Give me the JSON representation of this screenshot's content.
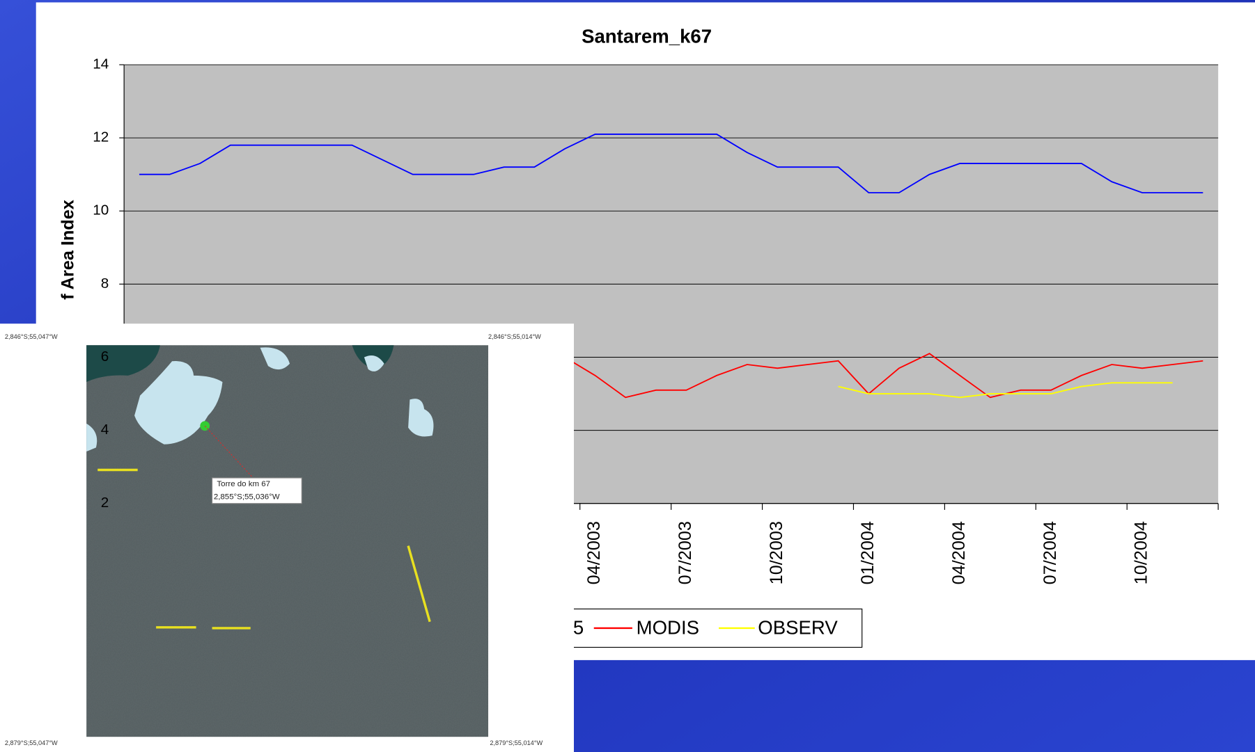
{
  "chart_data": {
    "type": "line",
    "title": "Santarem_k67",
    "y_label": "f Area Index",
    "categories": [
      null,
      null,
      null,
      null,
      null,
      null,
      null,
      null,
      null,
      null,
      null,
      null,
      null,
      null,
      null,
      "04/2003",
      null,
      null,
      "07/2003",
      null,
      null,
      "10/2003",
      null,
      null,
      "01/2004",
      null,
      null,
      "04/2004",
      null,
      null,
      "07/2004",
      null,
      null,
      "10/2004",
      null,
      null
    ],
    "ylim": [
      2,
      14
    ],
    "yticks": [
      2,
      4,
      6,
      8,
      10,
      12,
      14
    ],
    "grid": true,
    "series": [
      {
        "name": "5",
        "color": "#0000ff",
        "values": [
          11,
          11,
          11.3,
          11.8,
          11.8,
          11.8,
          11.8,
          11.8,
          11.4,
          11,
          11,
          11,
          11.2,
          11.2,
          11.7,
          12.1,
          12.1,
          12.1,
          12.1,
          12.1,
          11.6,
          11.2,
          11.2,
          11.2,
          10.5,
          10.5,
          11,
          11.3,
          11.3,
          11.3,
          11.3,
          11.3,
          10.8,
          10.5,
          10.5,
          10.5
        ]
      },
      {
        "name": "MODIS",
        "color": "#ff0000",
        "values": [
          5,
          5.7,
          6.1,
          5.5,
          4.9,
          5.1,
          5.1,
          5.5,
          5.8,
          5.7,
          5.8,
          5.9,
          5,
          5.7,
          6,
          5.5,
          4.9,
          5.1,
          5.1,
          5.5,
          5.8,
          5.7,
          5.8,
          5.9,
          5,
          5.7,
          6.1,
          5.5,
          4.9,
          5.1,
          5.1,
          5.5,
          5.8,
          5.7,
          5.8,
          5.9
        ]
      },
      {
        "name": "OBSERV",
        "color": "#ffff00",
        "values": [
          null,
          null,
          null,
          null,
          null,
          null,
          null,
          null,
          null,
          null,
          null,
          null,
          null,
          null,
          null,
          null,
          null,
          null,
          null,
          null,
          null,
          null,
          null,
          5.2,
          5,
          5,
          5,
          4.9,
          5,
          5,
          5,
          5.2,
          5.3,
          5.3,
          5.3,
          null
        ]
      }
    ]
  },
  "overlay": {
    "corner_labels": [
      "2,846°S;55,047°W",
      "2,846°S;55,014°W",
      "2,879°S;55,047°W",
      "2,879°S;55,014°W"
    ],
    "marker_label": [
      "Torre do km 67",
      "2,855°S;55,036°W"
    ]
  }
}
